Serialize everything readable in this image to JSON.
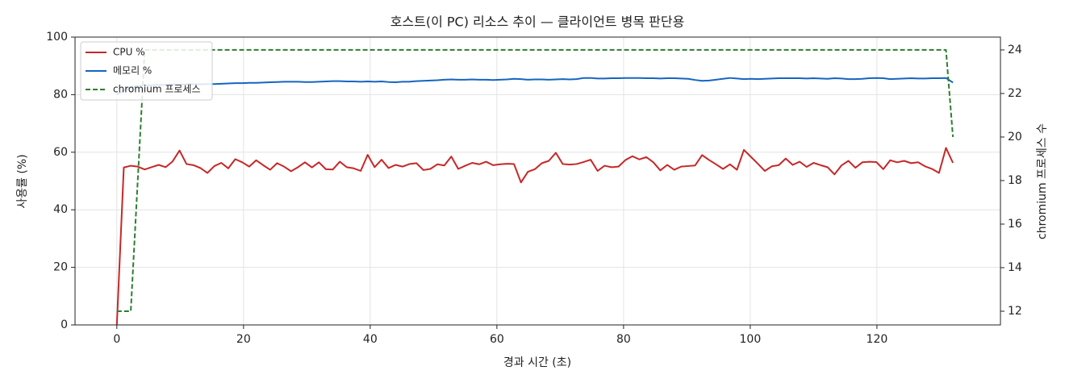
{
  "chart_data": {
    "type": "line",
    "title": "호스트(이 PC) 리소스 추이 — 클라이언트 병목 판단용",
    "xlabel": "경과 시간 (초)",
    "ylabel": "사용률 (%)",
    "y2label": "chromium 프로세스 수",
    "x": [
      0,
      1.1,
      2.2,
      3.3,
      4.4,
      5.5,
      6.6,
      7.7,
      8.8,
      9.9,
      11,
      12.1,
      13.2,
      14.3,
      15.4,
      16.5,
      17.6,
      18.7,
      19.8,
      20.9,
      22,
      23.1,
      24.2,
      25.3,
      26.4,
      27.5,
      28.6,
      29.7,
      30.8,
      31.9,
      33,
      34.1,
      35.2,
      36.3,
      37.4,
      38.5,
      39.6,
      40.7,
      41.8,
      42.9,
      44,
      45.1,
      46.2,
      47.3,
      48.4,
      49.5,
      50.6,
      51.7,
      52.8,
      53.9,
      55,
      56.1,
      57.2,
      58.3,
      59.4,
      60.5,
      61.6,
      62.7,
      63.8,
      64.9,
      66,
      67.1,
      68.2,
      69.3,
      70.4,
      71.5,
      72.6,
      73.7,
      74.8,
      75.9,
      77,
      78.1,
      79.2,
      80.3,
      81.4,
      82.5,
      83.6,
      84.7,
      85.8,
      86.9,
      88,
      89.1,
      90.2,
      91.3,
      92.4,
      93.5,
      94.6,
      95.7,
      96.8,
      97.9,
      99,
      100.1,
      101.2,
      102.3,
      103.4,
      104.5,
      105.6,
      106.7,
      107.8,
      108.9,
      110,
      111.1,
      112.2,
      113.3,
      114.4,
      115.5,
      116.6,
      117.7,
      118.8,
      119.9,
      121,
      122.1,
      123.2,
      124.3,
      125.4,
      126.5,
      127.6,
      128.7,
      129.8,
      130.9,
      132
    ],
    "series": [
      {
        "name": "CPU %",
        "color": "#c62828",
        "values": [
          0,
          54.7,
          55.3,
          55,
          54,
          54.8,
          55.6,
          54.8,
          56.8,
          60.6,
          55.9,
          55.5,
          54.5,
          52.8,
          55.2,
          56.3,
          54.4,
          57.6,
          56.5,
          55,
          57.2,
          55.5,
          53.9,
          56.2,
          55,
          53.4,
          54.8,
          56.5,
          54.7,
          56.5,
          54.1,
          54,
          56.7,
          54.8,
          54.4,
          53.5,
          59.1,
          54.8,
          57.4,
          54.5,
          55.6,
          55,
          55.9,
          56.2,
          53.8,
          54.2,
          55.8,
          55.4,
          58.5,
          54.2,
          55.3,
          56.3,
          55.8,
          56.7,
          55.5,
          55.8,
          56,
          55.9,
          49.5,
          53.2,
          54.1,
          56.2,
          57,
          59.8,
          55.9,
          55.7,
          55.9,
          56.6,
          57.4,
          53.5,
          55.3,
          54.8,
          55,
          57.3,
          58.6,
          57.5,
          58.3,
          56.5,
          53.7,
          55.6,
          53.9,
          55,
          55.2,
          55.4,
          59,
          57.3,
          55.8,
          54.2,
          55.8,
          53.9,
          60.8,
          58.4,
          56,
          53.5,
          55.1,
          55.5,
          57.8,
          55.6,
          56.7,
          54.9,
          56.3,
          55.5,
          54.8,
          52.3,
          55.4,
          57,
          54.6,
          56.5,
          56.7,
          56.6,
          54.1,
          57.2,
          56.5,
          57,
          56.2,
          56.5,
          55.1,
          54.2,
          52.8,
          61.5,
          56.3
        ]
      },
      {
        "name": "메모리 %",
        "color": "#1565c0",
        "values": [
          80,
          81.5,
          82.5,
          83,
          83.2,
          83.3,
          83.4,
          83.4,
          83.5,
          83.5,
          83.6,
          83.6,
          83.6,
          83.7,
          83.7,
          83.8,
          83.9,
          84,
          84,
          84.1,
          84.1,
          84.2,
          84.3,
          84.4,
          84.5,
          84.5,
          84.5,
          84.4,
          84.4,
          84.5,
          84.6,
          84.7,
          84.7,
          84.6,
          84.6,
          84.5,
          84.6,
          84.5,
          84.6,
          84.4,
          84.3,
          84.5,
          84.5,
          84.7,
          84.8,
          84.9,
          85,
          85.2,
          85.3,
          85.2,
          85.2,
          85.3,
          85.2,
          85.2,
          85.1,
          85.2,
          85.3,
          85.5,
          85.4,
          85.2,
          85.3,
          85.3,
          85.2,
          85.3,
          85.4,
          85.3,
          85.4,
          85.8,
          85.8,
          85.6,
          85.6,
          85.7,
          85.7,
          85.8,
          85.8,
          85.8,
          85.7,
          85.7,
          85.6,
          85.7,
          85.7,
          85.6,
          85.5,
          85.1,
          84.8,
          84.9,
          85.2,
          85.5,
          85.8,
          85.6,
          85.4,
          85.5,
          85.4,
          85.5,
          85.6,
          85.7,
          85.7,
          85.7,
          85.7,
          85.6,
          85.7,
          85.6,
          85.5,
          85.7,
          85.6,
          85.4,
          85.4,
          85.5,
          85.7,
          85.8,
          85.7,
          85.4,
          85.5,
          85.6,
          85.7,
          85.6,
          85.6,
          85.7,
          85.7,
          85.8,
          84.2
        ]
      },
      {
        "name": "chromium 프로세스",
        "color": "#2e7d32",
        "axis": "y2",
        "dashed": true,
        "values": [
          12,
          12,
          12,
          18,
          24,
          24,
          24,
          24,
          24,
          24,
          24,
          24,
          24,
          24,
          24,
          24,
          24,
          24,
          24,
          24,
          24,
          24,
          24,
          24,
          24,
          24,
          24,
          24,
          24,
          24,
          24,
          24,
          24,
          24,
          24,
          24,
          24,
          24,
          24,
          24,
          24,
          24,
          24,
          24,
          24,
          24,
          24,
          24,
          24,
          24,
          24,
          24,
          24,
          24,
          24,
          24,
          24,
          24,
          24,
          24,
          24,
          24,
          24,
          24,
          24,
          24,
          24,
          24,
          24,
          24,
          24,
          24,
          24,
          24,
          24,
          24,
          24,
          24,
          24,
          24,
          24,
          24,
          24,
          24,
          24,
          24,
          24,
          24,
          24,
          24,
          24,
          24,
          24,
          24,
          24,
          24,
          24,
          24,
          24,
          24,
          24,
          24,
          24,
          24,
          24,
          24,
          24,
          24,
          24,
          24,
          24,
          24,
          24,
          24,
          24,
          24,
          24,
          24,
          24,
          24,
          20
        ]
      }
    ],
    "xlim": [
      -6.6,
      139.5
    ],
    "xticks": [
      0,
      20,
      40,
      60,
      80,
      100,
      120
    ],
    "ylim": [
      0,
      100
    ],
    "yticks": [
      0,
      20,
      40,
      60,
      80,
      100
    ],
    "y2lim": [
      11.37,
      24.59
    ],
    "y2ticks": [
      12,
      14,
      16,
      18,
      20,
      22,
      24
    ],
    "grid": true,
    "legend": "upper left"
  }
}
